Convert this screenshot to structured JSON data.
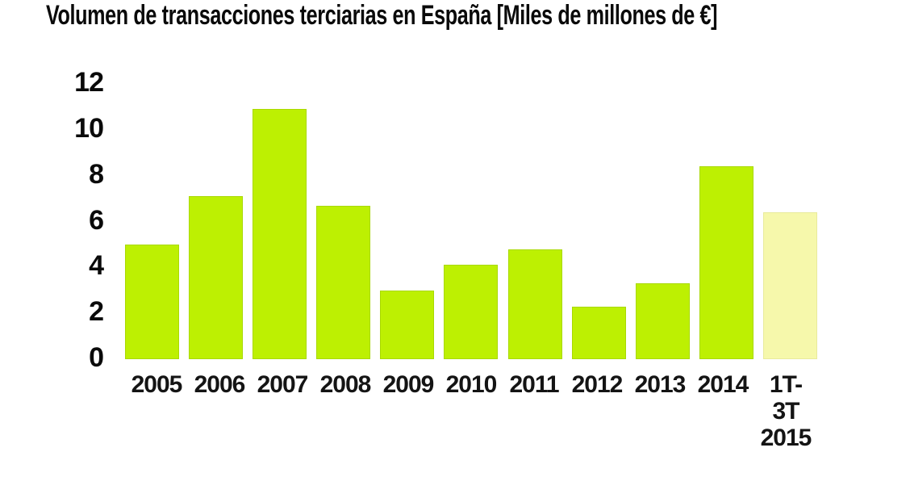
{
  "chart_data": {
    "type": "bar",
    "title": "Volumen de transacciones terciarias en España [Miles de millones de €]",
    "categories": [
      "2005",
      "2006",
      "2007",
      "2008",
      "2009",
      "2010",
      "2011",
      "2012",
      "2013",
      "2014",
      "1T-3T 2015"
    ],
    "xtick_display": [
      "2005",
      "2006",
      "2007",
      "2008",
      "2009",
      "2010",
      "2011",
      "2012",
      "2013",
      "2014",
      "1T-\n3T\n2015"
    ],
    "values": [
      5.0,
      7.1,
      10.9,
      6.7,
      3.0,
      4.1,
      4.8,
      2.3,
      3.3,
      8.4,
      6.4
    ],
    "xlabel": "",
    "ylabel": "",
    "ylim": [
      0,
      12
    ],
    "yticks": [
      0,
      2,
      4,
      6,
      8,
      10,
      12
    ],
    "grid": false,
    "legend": null,
    "highlight_last_bar": true,
    "colors": {
      "bar": "#bdf002",
      "bar_border": "#a9d902",
      "last_bar": "#f6f8ab",
      "last_bar_border": "#e9eb9c",
      "text": "#0a0a0a",
      "background": "#ffffff"
    }
  }
}
